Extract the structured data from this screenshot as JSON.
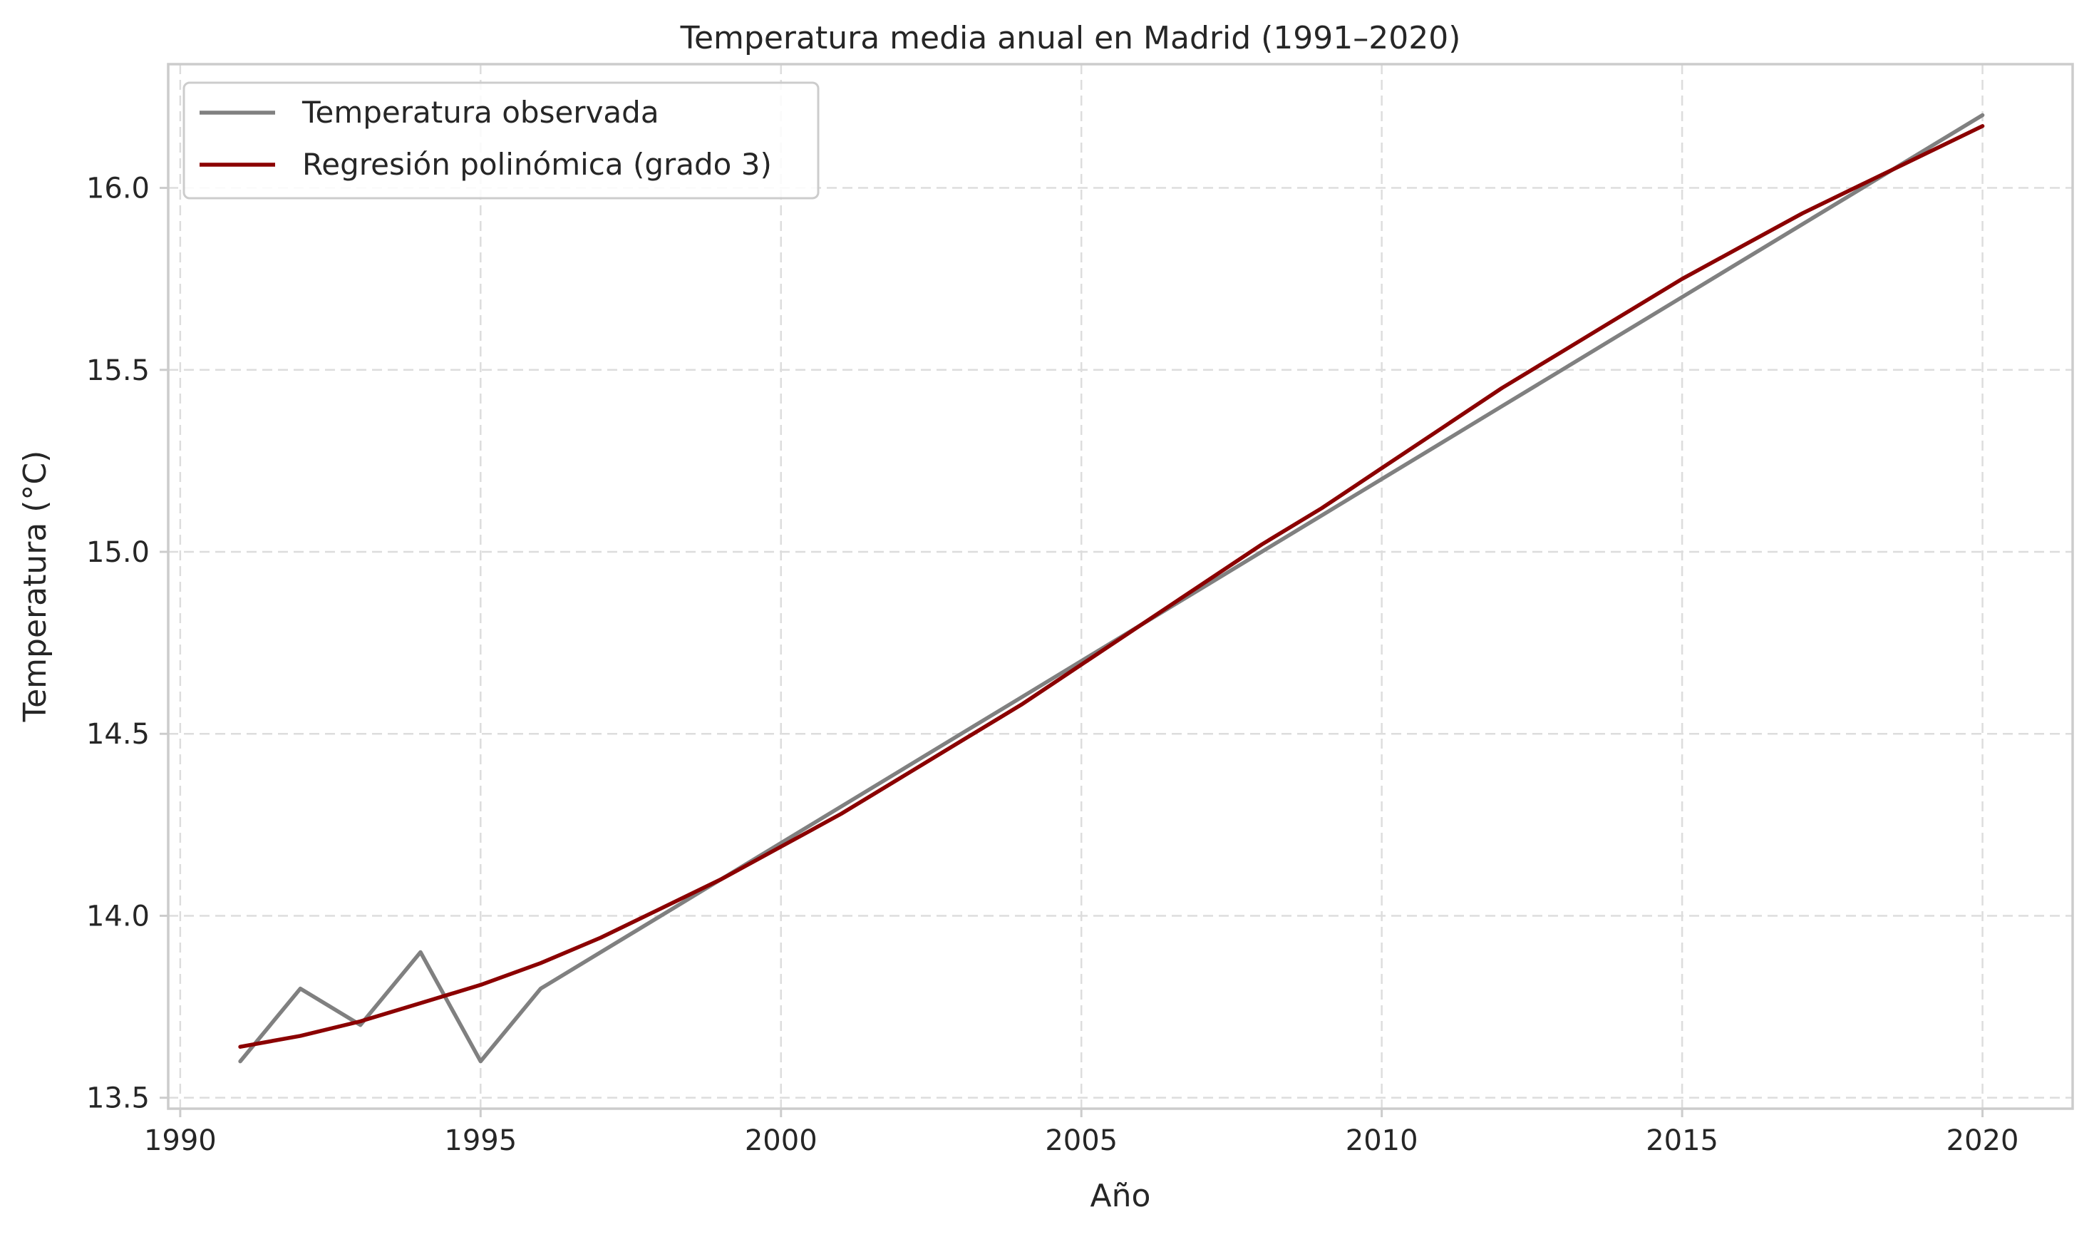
{
  "chart_data": {
    "type": "line",
    "title": "Temperatura media anual en Madrid (1991–2020)",
    "xlabel": "Año",
    "ylabel": "Temperatura (°C)",
    "xlim": [
      1989.8,
      2021.5
    ],
    "ylim": [
      13.47,
      16.34
    ],
    "xticks": [
      1990,
      1995,
      2000,
      2005,
      2010,
      2015,
      2020
    ],
    "yticks": [
      13.5,
      14.0,
      14.5,
      15.0,
      15.5,
      16.0
    ],
    "ytick_labels": [
      "13.5",
      "14.0",
      "14.5",
      "15.0",
      "15.5",
      "16.0"
    ],
    "grid": true,
    "legend_position": "upper-left",
    "colors": {
      "observed": "#808080",
      "regression": "#8b0000",
      "frame": "#cccccc",
      "grid": "#dddddd"
    },
    "x": [
      1991,
      1992,
      1993,
      1994,
      1995,
      1996,
      1997,
      1998,
      1999,
      2000,
      2001,
      2002,
      2003,
      2004,
      2005,
      2006,
      2007,
      2008,
      2009,
      2010,
      2011,
      2012,
      2013,
      2014,
      2015,
      2016,
      2017,
      2018,
      2019,
      2020
    ],
    "series": [
      {
        "name": "Temperatura observada",
        "color": "#808080",
        "values": [
          13.6,
          13.8,
          13.7,
          13.9,
          13.6,
          13.8,
          13.9,
          14.0,
          14.1,
          14.2,
          14.3,
          14.4,
          14.5,
          14.6,
          14.7,
          14.8,
          14.9,
          15.0,
          15.1,
          15.2,
          15.3,
          15.4,
          15.5,
          15.6,
          15.7,
          15.8,
          15.9,
          16.0,
          16.1,
          16.2
        ]
      },
      {
        "name": "Regresión polinómica (grado 3)",
        "color": "#8b0000",
        "values": [
          13.64,
          13.67,
          13.71,
          13.76,
          13.81,
          13.87,
          13.94,
          14.02,
          14.1,
          14.19,
          14.28,
          14.38,
          14.48,
          14.58,
          14.69,
          14.8,
          14.91,
          15.02,
          15.12,
          15.23,
          15.34,
          15.45,
          15.55,
          15.65,
          15.75,
          15.84,
          15.93,
          16.01,
          16.09,
          16.17
        ]
      }
    ]
  }
}
